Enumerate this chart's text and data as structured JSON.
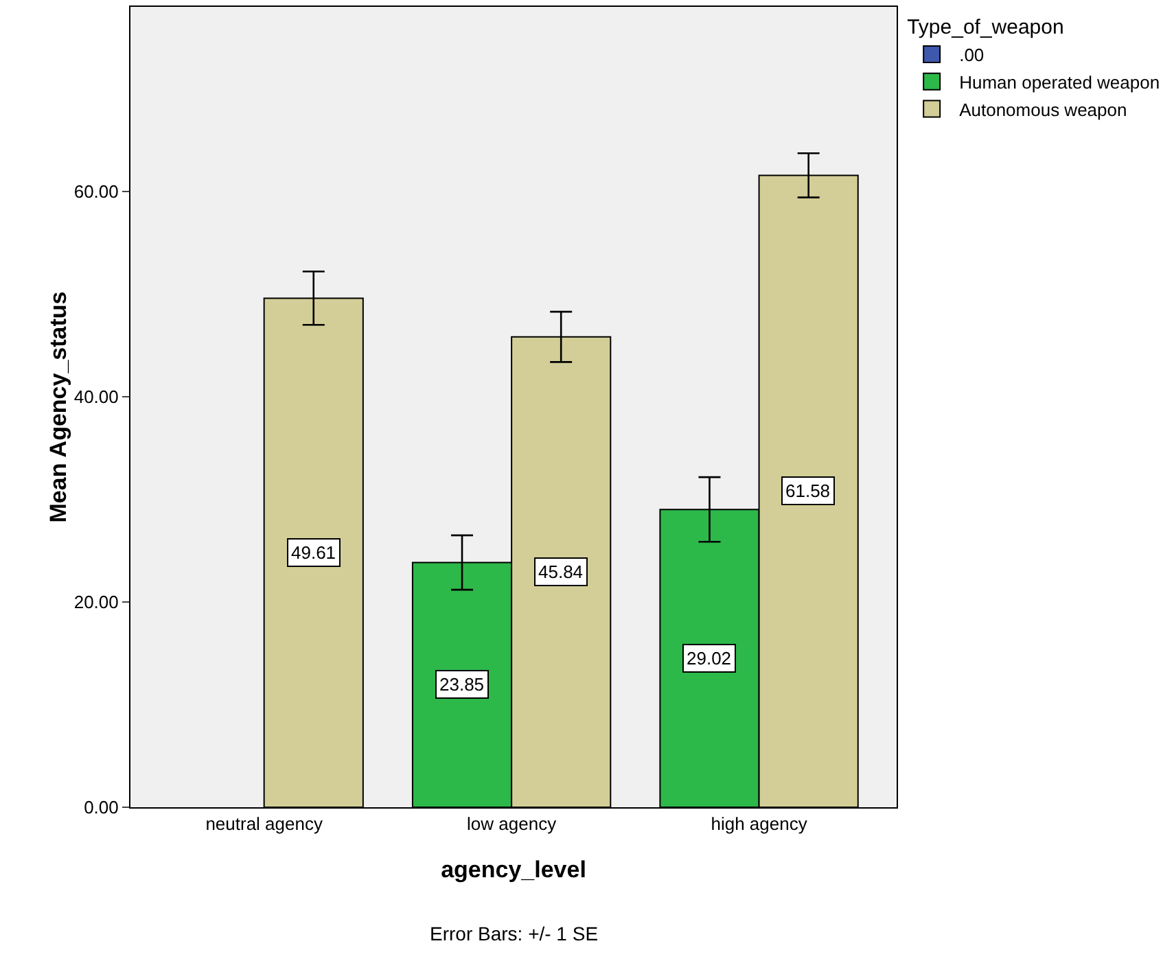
{
  "chart_data": {
    "type": "bar",
    "xlabel": "agency_level",
    "ylabel": "Mean Agency_status",
    "legend_title": "Type_of_weapon",
    "categories": [
      "neutral agency",
      "low agency",
      "high agency"
    ],
    "series": [
      {
        "name": ".00",
        "color": "#3e58ac",
        "values": [
          null,
          null,
          null
        ]
      },
      {
        "name": "Human operated weapon",
        "color": "#2db84a",
        "values": [
          null,
          23.85,
          29.02
        ],
        "errors": [
          null,
          2.65,
          3.15
        ]
      },
      {
        "name": "Autonomous weapon",
        "color": "#d3ce97",
        "values": [
          49.61,
          45.84,
          61.58
        ],
        "errors": [
          2.6,
          2.45,
          2.15
        ]
      }
    ],
    "ylim": [
      0,
      78
    ],
    "yticks": [
      {
        "value": 0,
        "label": "0.00"
      },
      {
        "value": 20,
        "label": "20.00"
      },
      {
        "value": 40,
        "label": "40.00"
      },
      {
        "value": 60,
        "label": "60.00"
      }
    ],
    "grid": false,
    "legend": "top right",
    "data_labels": true,
    "annotations": [
      "Error Bars: +/- 1 SE"
    ]
  }
}
